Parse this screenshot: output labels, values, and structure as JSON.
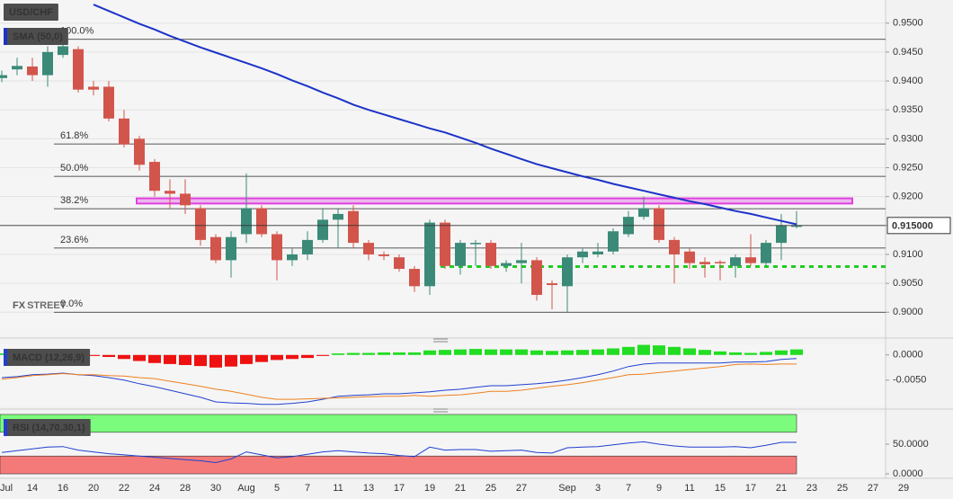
{
  "chart_data": [
    {
      "type": "candlestick",
      "title": "USD/CHF",
      "watermark": {
        "brand": "FX",
        "brand_accent": "STREET"
      },
      "categories": [
        "Jul",
        null,
        "14",
        null,
        "16",
        null,
        "20",
        null,
        "22",
        null,
        "24",
        null,
        "28",
        null,
        "30",
        null,
        "Aug",
        null,
        "5",
        null,
        "7",
        null,
        "11",
        null,
        "13",
        null,
        "17",
        null,
        "19",
        null,
        "21",
        null,
        "25",
        null,
        "27",
        null,
        null,
        "Sep",
        null,
        "3",
        null,
        "7",
        null,
        "9",
        null,
        "11",
        null,
        "15",
        null,
        "17",
        null,
        "21",
        null,
        "23",
        null,
        "25",
        null,
        "27",
        null,
        "29"
      ],
      "open": [
        0.9405,
        0.942,
        0.9425,
        0.941,
        0.9445,
        0.9455,
        0.939,
        0.939,
        0.9335,
        0.93,
        0.926,
        0.921,
        0.9205,
        0.918,
        0.913,
        0.909,
        0.9135,
        0.918,
        0.9135,
        0.909,
        0.91,
        0.9125,
        0.916,
        0.9175,
        0.912,
        0.91,
        0.9095,
        0.9075,
        0.9045,
        0.9155,
        0.908,
        0.9118,
        0.912,
        0.908,
        0.9085,
        0.909,
        0.905,
        0.9045,
        0.9095,
        0.91,
        0.9105,
        0.9135,
        0.9165,
        0.918,
        0.9125,
        0.9105,
        0.9087,
        0.9087,
        0.908,
        0.9095,
        0.9085,
        0.912,
        0.9148,
        null,
        null,
        null,
        null,
        null,
        null,
        null
      ],
      "high": [
        0.9418,
        0.944,
        0.944,
        0.946,
        0.9475,
        0.946,
        0.94,
        0.94,
        0.935,
        0.9305,
        0.9265,
        0.923,
        0.923,
        0.9185,
        0.9135,
        0.914,
        0.924,
        0.9185,
        0.914,
        0.911,
        0.914,
        0.918,
        0.918,
        0.9185,
        0.9125,
        0.9105,
        0.91,
        0.908,
        0.916,
        0.916,
        0.9125,
        0.9125,
        0.9125,
        0.909,
        0.912,
        0.9095,
        0.9055,
        0.91,
        0.911,
        0.912,
        0.9145,
        0.9175,
        0.92,
        0.9185,
        0.913,
        0.911,
        0.9095,
        0.909,
        0.91,
        0.9135,
        0.9125,
        0.917,
        0.9175,
        null,
        null,
        null,
        null,
        null,
        null,
        null
      ],
      "low": [
        0.9398,
        0.941,
        0.94,
        0.939,
        0.944,
        0.938,
        0.9375,
        0.933,
        0.9285,
        0.9245,
        0.92,
        0.918,
        0.917,
        0.9115,
        0.9085,
        0.906,
        0.912,
        0.913,
        0.9055,
        0.908,
        0.909,
        0.912,
        0.911,
        0.911,
        0.909,
        0.909,
        0.907,
        0.9035,
        0.903,
        0.9075,
        0.9065,
        0.908,
        0.9075,
        0.907,
        0.905,
        0.902,
        0.9005,
        0.9,
        0.9085,
        0.9095,
        0.91,
        0.913,
        0.916,
        0.912,
        0.905,
        0.9075,
        0.906,
        0.9055,
        0.906,
        0.908,
        0.908,
        0.909,
        0.9145,
        null,
        null,
        null,
        null,
        null,
        null,
        null
      ],
      "close": [
        0.941,
        0.9426,
        0.941,
        0.945,
        0.946,
        0.9385,
        0.9385,
        0.9335,
        0.929,
        0.9255,
        0.921,
        0.9205,
        0.9185,
        0.9125,
        0.909,
        0.913,
        0.918,
        0.9135,
        0.909,
        0.91,
        0.9125,
        0.916,
        0.917,
        0.912,
        0.91,
        0.9097,
        0.9075,
        0.9045,
        0.9155,
        0.908,
        0.912,
        0.912,
        0.908,
        0.9085,
        0.909,
        0.903,
        0.9047,
        0.9095,
        0.9105,
        0.9105,
        0.914,
        0.9165,
        0.918,
        0.9125,
        0.91,
        0.9085,
        0.9083,
        0.9085,
        0.9095,
        0.9085,
        0.912,
        0.915,
        0.915,
        null,
        null,
        null,
        null,
        null,
        null,
        null
      ],
      "up_color": "#3b8a78",
      "down_color": "#d2554c",
      "series": [
        {
          "name": "SMA (50,0)",
          "color": "#1c33c8",
          "values": [
            null,
            null,
            null,
            null,
            null,
            null,
            0.9532,
            0.9521,
            0.951,
            0.9499,
            0.9489,
            0.9478,
            0.9468,
            0.9458,
            0.9449,
            0.944,
            0.9431,
            0.9422,
            0.9412,
            0.9401,
            0.9391,
            0.938,
            0.937,
            0.9359,
            0.935,
            0.9342,
            0.9334,
            0.9326,
            0.9318,
            0.9311,
            0.9302,
            0.9293,
            0.9283,
            0.9274,
            0.9265,
            0.9256,
            0.9249,
            0.9242,
            0.9235,
            0.9229,
            0.9222,
            0.9216,
            0.921,
            0.9204,
            0.9198,
            0.9192,
            0.9187,
            0.9181,
            0.9175,
            0.917,
            0.9164,
            0.9158,
            0.9152,
            null,
            null,
            null,
            null,
            null,
            null,
            null
          ]
        }
      ],
      "levels": [
        {
          "name": "100.0%",
          "price": 0.9472
        },
        {
          "name": "61.8%",
          "price": 0.9291
        },
        {
          "name": "50.0%",
          "price": 0.9235
        },
        {
          "name": "38.2%",
          "price": 0.9179
        },
        {
          "name": "23.6%",
          "price": 0.9111
        },
        {
          "name": "0.0%",
          "price": 0.9
        }
      ],
      "level_color": "#222222",
      "zone": {
        "from": 0.9188,
        "to": 0.9197,
        "color": "#e040e0"
      },
      "support": {
        "value": 0.9079,
        "color": "#22cc22"
      },
      "last": {
        "value": 0.915,
        "label": "0.915000"
      },
      "ylim": [
        0.896,
        0.954
      ],
      "yticks": [
        {
          "value": 0.9,
          "label": "0.9000"
        },
        {
          "value": 0.905,
          "label": "0.9050"
        },
        {
          "value": 0.91,
          "label": "0.9100"
        },
        {
          "value": 0.915,
          "label": "0.9150"
        },
        {
          "value": 0.92,
          "label": "0.9200"
        },
        {
          "value": 0.925,
          "label": "0.9250"
        },
        {
          "value": 0.93,
          "label": "0.9300"
        },
        {
          "value": 0.935,
          "label": "0.9350"
        },
        {
          "value": 0.94,
          "label": "0.9400"
        },
        {
          "value": 0.945,
          "label": "0.9450"
        },
        {
          "value": 0.95,
          "label": "0.9500"
        }
      ],
      "grid": true
    },
    {
      "type": "macd",
      "title": "MACD (12,26,9)",
      "histogram": {
        "up_color": "#22dd22",
        "down_color": "#ee1111",
        "values": [
          0.0003,
          0.0002,
          0.0002,
          0.0001,
          0.0001,
          0,
          -0.0002,
          -0.0004,
          -0.0008,
          -0.0012,
          -0.0016,
          -0.0018,
          -0.002,
          -0.0022,
          -0.0025,
          -0.0023,
          -0.0018,
          -0.0014,
          -0.001,
          -0.0008,
          -0.0006,
          -0.0002,
          0.0003,
          0.0004,
          0.0004,
          0.0005,
          0.0005,
          0.0005,
          0.0009,
          0.001,
          0.0011,
          0.0012,
          0.0011,
          0.0011,
          0.0011,
          0.0009,
          0.0008,
          0.0009,
          0.001,
          0.0011,
          0.0013,
          0.0016,
          0.002,
          0.0019,
          0.0016,
          0.0013,
          0.001,
          0.0007,
          0.0005,
          0.0004,
          0.0006,
          0.0009,
          0.0011,
          null,
          null,
          null,
          null,
          null,
          null,
          null
        ]
      },
      "series": [
        {
          "color": "#2040d0",
          "values": [
            -0.0045,
            -0.0043,
            -0.0039,
            -0.0038,
            -0.0036,
            -0.0039,
            -0.0041,
            -0.0045,
            -0.005,
            -0.0057,
            -0.0063,
            -0.007,
            -0.0077,
            -0.0084,
            -0.0093,
            -0.0095,
            -0.0096,
            -0.0098,
            -0.0098,
            -0.0096,
            -0.0093,
            -0.0088,
            -0.0082,
            -0.008,
            -0.0079,
            -0.0077,
            -0.0077,
            -0.0075,
            -0.0073,
            -0.007,
            -0.0068,
            -0.0064,
            -0.0061,
            -0.0061,
            -0.0059,
            -0.0057,
            -0.0054,
            -0.005,
            -0.0045,
            -0.0039,
            -0.0032,
            -0.0023,
            -0.0018,
            -0.0016,
            -0.0016,
            -0.0016,
            -0.0016,
            -0.0016,
            -0.0014,
            -0.0014,
            -0.0013,
            -0.0009,
            -0.0007,
            null,
            null,
            null,
            null,
            null,
            null,
            null
          ]
        },
        {
          "color": "#f08020",
          "values": [
            -0.0048,
            -0.0045,
            -0.0041,
            -0.0039,
            -0.0037,
            -0.0039,
            -0.0039,
            -0.0041,
            -0.0042,
            -0.0045,
            -0.0047,
            -0.0052,
            -0.0057,
            -0.0062,
            -0.0068,
            -0.0072,
            -0.0078,
            -0.0084,
            -0.0088,
            -0.0088,
            -0.0087,
            -0.0086,
            -0.0085,
            -0.0084,
            -0.0083,
            -0.0082,
            -0.0082,
            -0.008,
            -0.0082,
            -0.008,
            -0.0079,
            -0.0076,
            -0.0072,
            -0.0072,
            -0.007,
            -0.0066,
            -0.0062,
            -0.0059,
            -0.0055,
            -0.005,
            -0.0045,
            -0.0039,
            -0.0038,
            -0.0035,
            -0.0032,
            -0.0029,
            -0.0026,
            -0.0023,
            -0.0019,
            -0.0018,
            -0.0019,
            -0.0018,
            -0.0018,
            null,
            null,
            null,
            null,
            null,
            null,
            null
          ]
        }
      ],
      "ylim": [
        -0.0102,
        0.0021
      ],
      "yticks": [
        {
          "value": -0.005,
          "label": "-0.0050"
        },
        {
          "value": 0,
          "label": "0.0000"
        }
      ]
    },
    {
      "type": "rsi",
      "title": "RSI (14,70,30,1)",
      "series": [
        {
          "color": "#2040d0",
          "values": [
            36,
            39,
            42,
            45,
            46,
            40,
            37,
            34,
            32,
            30,
            28,
            26,
            24,
            22,
            19,
            25,
            37,
            32,
            27,
            29,
            33,
            37,
            39,
            37,
            35,
            34,
            31,
            29,
            45,
            40,
            41,
            41,
            38,
            39,
            40,
            36,
            35,
            44,
            45,
            46,
            49,
            52,
            54,
            50,
            47,
            45,
            45,
            45,
            46,
            44,
            48,
            53,
            53,
            null,
            null,
            null,
            null,
            null,
            null,
            null
          ]
        }
      ],
      "bands": [
        {
          "from": 70,
          "to": 100,
          "color": "#7cfc7c"
        },
        {
          "from": 0,
          "to": 30,
          "color": "#f47a7a"
        }
      ],
      "ylim": [
        -4.5,
        101.5
      ],
      "yticks": [
        {
          "value": 0,
          "label": "0.0000"
        },
        {
          "value": 50,
          "label": "50.0000"
        }
      ]
    }
  ]
}
